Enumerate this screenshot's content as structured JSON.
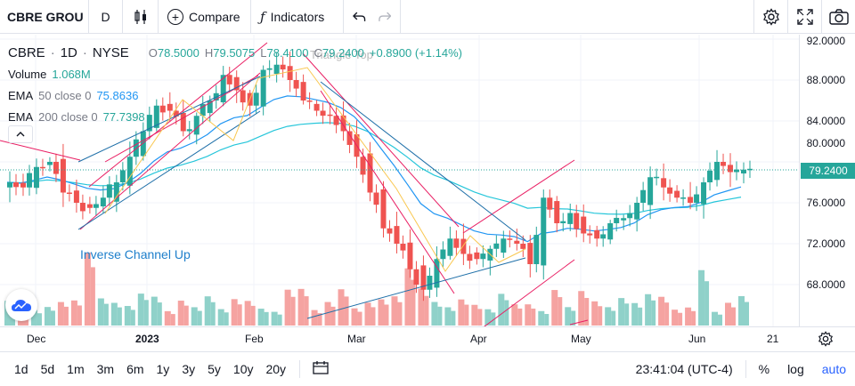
{
  "toolbar": {
    "symbol": "CBRE GROU",
    "interval": "D",
    "compare_label": "Compare",
    "indicators_label": "Indicators"
  },
  "legend": {
    "ticker": "CBRE",
    "interval": "1D",
    "exchange": "NYSE",
    "open_label": "O",
    "open": "78.5000",
    "high_label": "H",
    "high": "79.5075",
    "low_label": "L",
    "low": "78.4100",
    "close_label": "C",
    "close": "79.2400",
    "change": "+0.8900 (+1.14%)",
    "volume_label": "Volume",
    "volume": "1.068M",
    "ema50_label": "EMA",
    "ema50_params": "50 close 0",
    "ema50_value": "75.8636",
    "ema200_label": "EMA",
    "ema200_params": "200 close 0",
    "ema200_value": "77.7398"
  },
  "annotations": {
    "triangle_top": "Triangle Top",
    "inverse_channel_up": "Inverse Channel Up"
  },
  "price_axis": {
    "labels": [
      "92.0000",
      "88.0000",
      "84.0000",
      "80.0000",
      "76.0000",
      "72.0000",
      "68.0000"
    ],
    "current_price": "79.2400"
  },
  "time_axis": {
    "labels": [
      "Dec",
      "2023",
      "Feb",
      "Mar",
      "Apr",
      "May",
      "Jun",
      "21"
    ]
  },
  "bottom": {
    "ranges": [
      "1d",
      "5d",
      "1m",
      "3m",
      "6m",
      "1y",
      "3y",
      "5y",
      "10y",
      "20y"
    ],
    "clock": "23:41:04 (UTC-4)",
    "percent": "%",
    "log": "log",
    "auto": "auto"
  },
  "colors": {
    "up": "#26a69a",
    "down": "#ef5350",
    "ema50": "#2196f3",
    "ema200": "#26c6da",
    "pattern": "#e91e63",
    "accent": "#2962ff"
  },
  "chart_data": {
    "type": "candlestick",
    "ylim": [
      64.5,
      93.5
    ],
    "x_labels": [
      "Dec",
      "2023",
      "Feb",
      "Mar",
      "Apr",
      "May",
      "Jun",
      "21"
    ],
    "approx_close_path": [
      78.0,
      77.5,
      79.5,
      80.0,
      77.0,
      76.0,
      75.5,
      76.5,
      78.0,
      80.5,
      83.0,
      85.5,
      85.0,
      83.0,
      84.5,
      86.0,
      88.5,
      87.0,
      85.5,
      89.0,
      89.5,
      88.0,
      86.0,
      85.0,
      84.5,
      83.0,
      80.5,
      77.0,
      73.5,
      72.0,
      69.5,
      67.5,
      70.5,
      72.5,
      71.0,
      70.5,
      71.5,
      72.5,
      72.0,
      70.0,
      76.5,
      74.0,
      75.0,
      73.0,
      72.5,
      74.0,
      74.5,
      76.0,
      78.5,
      77.5,
      76.5,
      76.0,
      78.0,
      80.0,
      79.0,
      79.24
    ]
  }
}
